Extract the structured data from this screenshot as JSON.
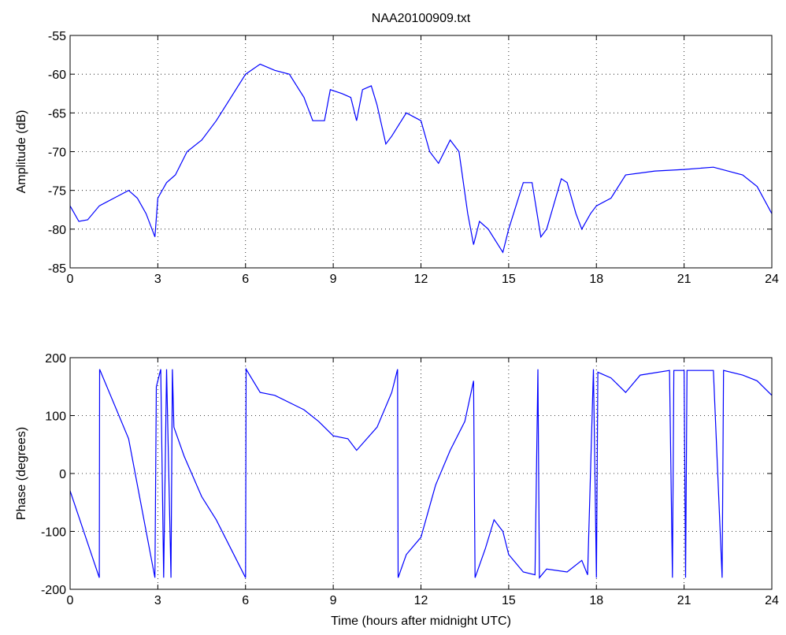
{
  "chart_data": [
    {
      "type": "line",
      "title": "NAA20100909.txt",
      "y_label": "Amplitude (dB)",
      "xlim": [
        0,
        24
      ],
      "xticks": [
        0,
        3,
        6,
        9,
        12,
        15,
        18,
        21,
        24
      ],
      "ylim": [
        -85,
        -55
      ],
      "yticks": [
        -85,
        -80,
        -75,
        -70,
        -65,
        -60,
        -55
      ],
      "grid": true,
      "x": [
        0,
        0.3,
        0.6,
        1,
        1.5,
        2,
        2.3,
        2.6,
        2.9,
        3,
        3.3,
        3.6,
        4,
        4.5,
        5,
        5.5,
        6,
        6.5,
        7,
        7.5,
        8,
        8.3,
        8.7,
        8.9,
        9.3,
        9.6,
        9.8,
        10,
        10.3,
        10.5,
        10.8,
        11,
        11.5,
        12,
        12.3,
        12.6,
        13,
        13.3,
        13.6,
        13.8,
        14,
        14.3,
        14.8,
        15,
        15.5,
        15.8,
        16.1,
        16.3,
        16.8,
        17,
        17.3,
        17.5,
        17.8,
        18,
        18.5,
        19,
        20,
        21,
        22,
        23,
        23.5,
        24
      ],
      "series": [
        {
          "color": "#0000ff",
          "values": [
            -77,
            -79,
            -78.8,
            -77,
            -76,
            -75,
            -76,
            -78,
            -81,
            -76,
            -74,
            -73,
            -70,
            -68.5,
            -66,
            -63,
            -60,
            -58.7,
            -59.5,
            -60,
            -63,
            -66,
            -66,
            -62,
            -62.5,
            -63,
            -66,
            -62,
            -61.5,
            -64,
            -69,
            -68,
            -65,
            -66,
            -70,
            -71.5,
            -68.5,
            -70,
            -78,
            -82,
            -79,
            -80,
            -83,
            -80,
            -74,
            -74,
            -81,
            -80,
            -73.5,
            -74,
            -78,
            -80,
            -78,
            -77,
            -76,
            -73,
            -72.5,
            -72.3,
            -72,
            -73,
            -74.5,
            -78
          ]
        }
      ]
    },
    {
      "type": "line",
      "x_label": "Time (hours after midnight UTC)",
      "y_label": "Phase (degrees)",
      "xlim": [
        0,
        24
      ],
      "xticks": [
        0,
        3,
        6,
        9,
        12,
        15,
        18,
        21,
        24
      ],
      "ylim": [
        -200,
        200
      ],
      "yticks": [
        -200,
        -100,
        0,
        100,
        200
      ],
      "grid": true,
      "x": [
        0,
        1,
        1.01,
        2,
        2.9,
        2.95,
        3.1,
        3.2,
        3.3,
        3.45,
        3.5,
        3.55,
        3.9,
        4.5,
        5,
        6,
        6.02,
        6.5,
        7,
        8,
        8.5,
        9,
        9.5,
        9.8,
        10.5,
        11,
        11.2,
        11.22,
        11.5,
        12,
        12.5,
        13,
        13.5,
        13.8,
        13.85,
        14.2,
        14.5,
        14.8,
        15,
        15.5,
        15.9,
        16,
        16.05,
        16.3,
        17,
        17.5,
        17.7,
        17.9,
        18,
        18.05,
        18.5,
        19,
        19.5,
        20.5,
        20.6,
        20.65,
        21,
        21.05,
        21.1,
        22,
        22.3,
        22.35,
        23,
        23.5,
        24
      ],
      "series": [
        {
          "color": "#0000ff",
          "values": [
            -30,
            -180,
            180,
            60,
            -180,
            150,
            180,
            -180,
            180,
            -180,
            180,
            80,
            30,
            -40,
            -80,
            -180,
            180,
            140,
            135,
            110,
            90,
            65,
            60,
            40,
            80,
            140,
            180,
            -180,
            -140,
            -110,
            -20,
            40,
            90,
            160,
            -180,
            -130,
            -80,
            -100,
            -140,
            -170,
            -175,
            180,
            -180,
            -165,
            -170,
            -150,
            -175,
            180,
            -180,
            175,
            165,
            140,
            170,
            178,
            -180,
            178,
            178,
            -180,
            178,
            178,
            -180,
            178,
            170,
            160,
            135
          ]
        }
      ]
    }
  ]
}
